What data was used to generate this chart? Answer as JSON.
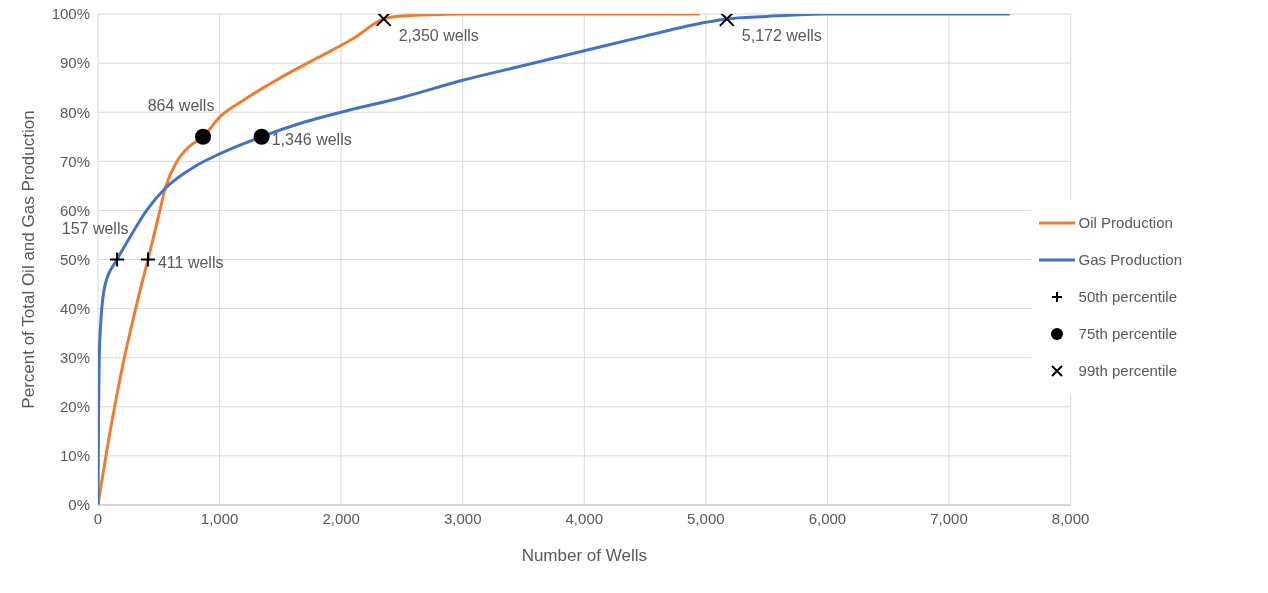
{
  "chart_data": {
    "type": "line",
    "xlabel": "Number of Wells",
    "ylabel": "Percent of Total Oil and Gas Production",
    "xlim": [
      0,
      8000
    ],
    "ylim": [
      0,
      100
    ],
    "xticks": [
      {
        "value": 0,
        "label": "0"
      },
      {
        "value": 1000,
        "label": "1,000"
      },
      {
        "value": 2000,
        "label": "2,000"
      },
      {
        "value": 3000,
        "label": "3,000"
      },
      {
        "value": 4000,
        "label": "4,000"
      },
      {
        "value": 5000,
        "label": "5,000"
      },
      {
        "value": 6000,
        "label": "6,000"
      },
      {
        "value": 7000,
        "label": "7,000"
      },
      {
        "value": 8000,
        "label": "8,000"
      }
    ],
    "yticks": [
      {
        "value": 0,
        "label": "0%"
      },
      {
        "value": 10,
        "label": "10%"
      },
      {
        "value": 20,
        "label": "20%"
      },
      {
        "value": 30,
        "label": "30%"
      },
      {
        "value": 40,
        "label": "40%"
      },
      {
        "value": 50,
        "label": "50%"
      },
      {
        "value": 60,
        "label": "60%"
      },
      {
        "value": 70,
        "label": "70%"
      },
      {
        "value": 80,
        "label": "80%"
      },
      {
        "value": 90,
        "label": "90%"
      },
      {
        "value": 100,
        "label": "100%"
      }
    ],
    "grid": true,
    "legend": "right",
    "series": [
      {
        "name": "Oil Production",
        "color": "#ed7d31",
        "marker": "none",
        "x": [
          0,
          100,
          200,
          300,
          411,
          500,
          553,
          650,
          750,
          864,
          1000,
          1200,
          1500,
          1800,
          2100,
          2350,
          2500,
          2800,
          3000,
          4950
        ],
        "values": [
          0,
          15,
          28,
          39,
          50,
          59,
          64.5,
          70,
          73,
          75,
          79,
          82.5,
          87,
          91,
          95,
          99,
          99.6,
          99.9,
          100,
          100
        ]
      },
      {
        "name": "Gas Production",
        "color": "#4472c4",
        "marker": "none",
        "x": [
          0,
          5,
          10,
          25,
          60,
          157,
          250,
          400,
          553,
          800,
          1000,
          1346,
          1700,
          2000,
          2500,
          3000,
          3500,
          4000,
          4500,
          5000,
          5172,
          5500,
          6000,
          7500
        ],
        "values": [
          0,
          20,
          30,
          38,
          45,
          50,
          54,
          60,
          64.5,
          69,
          71.5,
          75,
          78,
          80,
          83,
          86.5,
          89.5,
          92.5,
          95.5,
          98.3,
          99,
          99.5,
          100,
          100
        ]
      },
      {
        "name": "50th percentile",
        "type": "scatter",
        "color": "#000000",
        "marker": "cross",
        "x": [
          157,
          411
        ],
        "values": [
          50,
          50
        ]
      },
      {
        "name": "75th percentile",
        "type": "scatter",
        "color": "#000000",
        "marker": "circle",
        "x": [
          864,
          1346
        ],
        "values": [
          75,
          75
        ]
      },
      {
        "name": "99th percentile",
        "type": "scatter",
        "color": "#000000",
        "marker": "x",
        "x": [
          2350,
          5172
        ],
        "values": [
          99,
          99
        ]
      }
    ],
    "annotations": [
      {
        "text": "157 wells",
        "x": 157,
        "y": 50
      },
      {
        "text": "411 wells",
        "x": 411,
        "y": 50
      },
      {
        "text": "864 wells",
        "x": 864,
        "y": 75
      },
      {
        "text": "1,346 wells",
        "x": 1346,
        "y": 75
      },
      {
        "text": "2,350 wells",
        "x": 2350,
        "y": 99
      },
      {
        "text": "5,172 wells",
        "x": 5172,
        "y": 99
      }
    ]
  }
}
